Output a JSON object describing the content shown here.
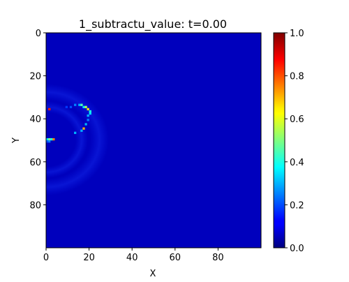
{
  "chart_data": {
    "type": "heatmap",
    "title": "1_subtractu_value: t=0.00",
    "xlabel": "X",
    "ylabel": "Y",
    "grid": false,
    "colormap": "jet",
    "xlim": [
      0,
      99
    ],
    "ylim": [
      99,
      0
    ],
    "y_axis_inverted": true,
    "x_ticks": [
      0,
      20,
      40,
      60,
      80
    ],
    "y_ticks": [
      0,
      20,
      40,
      60,
      80
    ],
    "colorbar": {
      "vmin": 0.0,
      "vmax": 1.0,
      "ticks": [
        "0.0",
        "0.2",
        "0.4",
        "0.6",
        "0.8",
        "1.0"
      ]
    },
    "background_value": 0.06,
    "grid_size": [
      100,
      100
    ],
    "bright_cells": [
      {
        "x": 1,
        "y": 35,
        "value": 0.85
      },
      {
        "x": 0,
        "y": 49,
        "value": 0.35
      },
      {
        "x": 1,
        "y": 49,
        "value": 0.5
      },
      {
        "x": 2,
        "y": 49,
        "value": 0.4
      },
      {
        "x": 3,
        "y": 49,
        "value": 0.75
      },
      {
        "x": 0,
        "y": 50,
        "value": 0.2
      },
      {
        "x": 1,
        "y": 50,
        "value": 0.25
      },
      {
        "x": 13,
        "y": 33,
        "value": 0.25
      },
      {
        "x": 15,
        "y": 33,
        "value": 0.3
      },
      {
        "x": 16,
        "y": 33,
        "value": 0.45
      },
      {
        "x": 17,
        "y": 34,
        "value": 0.35
      },
      {
        "x": 18,
        "y": 34,
        "value": 0.55
      },
      {
        "x": 19,
        "y": 35,
        "value": 0.65
      },
      {
        "x": 20,
        "y": 36,
        "value": 0.4
      },
      {
        "x": 20,
        "y": 37,
        "value": 0.35
      },
      {
        "x": 19,
        "y": 38,
        "value": 0.3
      },
      {
        "x": 19,
        "y": 40,
        "value": 0.25
      },
      {
        "x": 18,
        "y": 42,
        "value": 0.3
      },
      {
        "x": 17,
        "y": 44,
        "value": 0.7
      },
      {
        "x": 16,
        "y": 45,
        "value": 0.3
      },
      {
        "x": 13,
        "y": 46,
        "value": 0.3
      },
      {
        "x": 11,
        "y": 34,
        "value": 0.2
      },
      {
        "x": 9,
        "y": 34,
        "value": 0.18
      }
    ]
  }
}
